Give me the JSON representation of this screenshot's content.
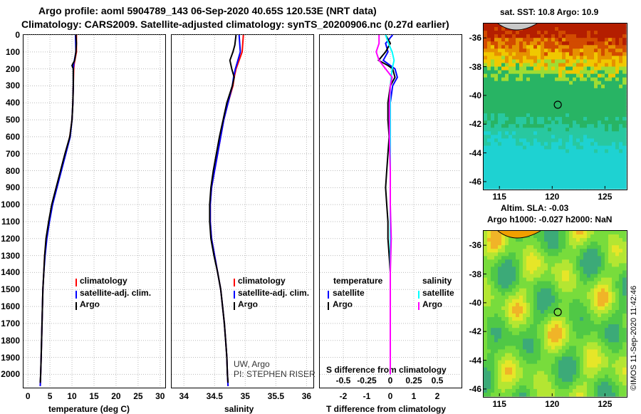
{
  "header": {
    "line1": "Argo profile: aoml 5904789_143 06-Sep-2020 40.65S 120.53E (NRT data)",
    "line2": "Climatology: CARS2009. Satellite-adjusted climatology: synTS_20200906.nc (0.27d earlier)"
  },
  "depth_ticks": [
    "0",
    "100",
    "200",
    "300",
    "400",
    "500",
    "600",
    "700",
    "800",
    "900",
    "1000",
    "1100",
    "1200",
    "1300",
    "1400",
    "1500",
    "1600",
    "1700",
    "1800",
    "1900",
    "2000"
  ],
  "chart_data": [
    {
      "type": "line",
      "name": "temperature",
      "xlabel": "temperature (deg C)",
      "ylabel": "depth",
      "xlim": [
        -1,
        31
      ],
      "ylim": [
        2070,
        0
      ],
      "xticks": [
        "0",
        "5",
        "10",
        "15",
        "20",
        "25",
        "30"
      ],
      "series": [
        {
          "name": "climatology",
          "color": "#ff0000",
          "depth": [
            0,
            100,
            170,
            200,
            300,
            400,
            500,
            600,
            700,
            800,
            900,
            1000,
            1100,
            1200,
            1300,
            1400,
            1500,
            1600,
            1700,
            1800,
            1900,
            2000,
            2070
          ],
          "values": [
            11.0,
            11.0,
            10.5,
            10.4,
            10.3,
            10.2,
            10.0,
            9.5,
            8.5,
            7.5,
            6.5,
            5.5,
            4.8,
            4.2,
            3.8,
            3.6,
            3.4,
            3.3,
            3.2,
            3.1,
            3.0,
            2.9,
            2.8
          ]
        },
        {
          "name": "satellite-adj. clim.",
          "color": "#0000ff",
          "depth": [
            0,
            100,
            170,
            200,
            300,
            400,
            500,
            600,
            700,
            800,
            900,
            1000,
            1100,
            1200,
            1300,
            1400,
            1500,
            1600,
            1700,
            1800,
            1900,
            2000,
            2070
          ],
          "values": [
            10.8,
            10.9,
            10.4,
            10.3,
            10.3,
            10.2,
            10.0,
            9.6,
            8.6,
            7.6,
            6.6,
            5.6,
            4.9,
            4.3,
            3.9,
            3.6,
            3.4,
            3.3,
            3.2,
            3.1,
            3.0,
            2.9,
            2.8
          ]
        },
        {
          "name": "Argo",
          "color": "#000000",
          "depth": [
            0,
            50,
            100,
            150,
            180,
            200,
            300,
            400,
            500,
            600,
            700,
            800,
            900,
            1000,
            1100,
            1200,
            1300,
            1400,
            1500,
            1600,
            1700,
            1800,
            1900,
            2000,
            2050
          ],
          "values": [
            10.9,
            11.0,
            10.9,
            10.6,
            10.0,
            10.3,
            10.3,
            10.2,
            10.0,
            9.5,
            8.4,
            7.4,
            6.4,
            5.4,
            4.7,
            4.1,
            3.8,
            3.6,
            3.4,
            3.3,
            3.2,
            3.1,
            3.0,
            2.9,
            2.8
          ]
        }
      ],
      "legend": [
        "climatology",
        "satellite-adj. clim.",
        "Argo"
      ]
    },
    {
      "type": "line",
      "name": "salinity",
      "xlabel": "salinity",
      "ylabel": "depth",
      "xlim": [
        33.8,
        36.1
      ],
      "ylim": [
        2070,
        0
      ],
      "xticks": [
        "34",
        "34.5",
        "35",
        "35.5",
        "36"
      ],
      "series": [
        {
          "name": "climatology",
          "color": "#ff0000",
          "depth": [
            0,
            100,
            150,
            200,
            250,
            300,
            400,
            500,
            600,
            700,
            800,
            900,
            1000,
            1100,
            1200,
            1300,
            1400,
            1500,
            1600,
            1700,
            1800,
            1900,
            2000,
            2070
          ],
          "values": [
            34.97,
            34.95,
            34.9,
            34.85,
            34.82,
            34.8,
            34.72,
            34.65,
            34.6,
            34.55,
            34.5,
            34.45,
            34.43,
            34.43,
            34.45,
            34.5,
            34.55,
            34.6,
            34.63,
            34.66,
            34.68,
            34.7,
            34.71,
            34.72
          ]
        },
        {
          "name": "satellite-adj. clim.",
          "color": "#0000ff",
          "depth": [
            0,
            100,
            150,
            200,
            250,
            300,
            400,
            500,
            600,
            700,
            800,
            900,
            1000,
            1100,
            1200,
            1300,
            1400,
            1500,
            1600,
            1700,
            1800,
            1900,
            2000,
            2070
          ],
          "values": [
            34.9,
            34.92,
            34.88,
            34.84,
            34.81,
            34.79,
            34.72,
            34.65,
            34.6,
            34.55,
            34.5,
            34.45,
            34.43,
            34.43,
            34.45,
            34.5,
            34.55,
            34.6,
            34.63,
            34.66,
            34.68,
            34.7,
            34.71,
            34.72
          ]
        },
        {
          "name": "Argo",
          "color": "#000000",
          "depth": [
            0,
            60,
            100,
            150,
            200,
            250,
            300,
            400,
            500,
            600,
            700,
            800,
            900,
            1000,
            1100,
            1200,
            1300,
            1400,
            1500,
            1600,
            1700,
            1800,
            1900,
            2000,
            2050
          ],
          "values": [
            34.85,
            34.83,
            34.8,
            34.75,
            34.78,
            34.82,
            34.79,
            34.7,
            34.64,
            34.58,
            34.53,
            34.48,
            34.44,
            34.42,
            34.42,
            34.44,
            34.49,
            34.55,
            34.6,
            34.63,
            34.66,
            34.68,
            34.7,
            34.71,
            34.72
          ]
        }
      ],
      "legend": [
        "climatology",
        "satellite-adj. clim.",
        "Argo"
      ],
      "note1": "UW, Argo",
      "note2": "PI: STEPHEN RISER"
    },
    {
      "type": "line",
      "name": "difference",
      "xlabel": "T difference from climatology",
      "xlabel_top": "S difference from climatology",
      "ylim": [
        2070,
        0
      ],
      "t_xlim": [
        -3,
        3
      ],
      "t_xticks": [
        "-2",
        "-1",
        "0",
        "1",
        "2"
      ],
      "s_xlim": [
        -0.75,
        0.75
      ],
      "s_xticks": [
        "-0.5",
        "-0.25",
        "0",
        "0.25",
        "0.5"
      ],
      "series": [
        {
          "name": "T satellite",
          "unit": "T",
          "color": "#0000ff",
          "depth": [
            0,
            50,
            100,
            150,
            200,
            250,
            300,
            400,
            600,
            800,
            1000,
            1200,
            1400,
            1600,
            1800,
            2000
          ],
          "values": [
            0.1,
            -0.2,
            -0.1,
            -0.3,
            0.2,
            0.3,
            0.1,
            0.0,
            0.0,
            0.0,
            0.0,
            0.0,
            0.0,
            0.0,
            0.0,
            0.0
          ]
        },
        {
          "name": "T Argo",
          "unit": "T",
          "color": "#000000",
          "depth": [
            0,
            50,
            100,
            150,
            180,
            200,
            250,
            300,
            400,
            500,
            600,
            700,
            800,
            900,
            1000,
            1100,
            1200,
            1300,
            1400,
            1600,
            1800,
            2000
          ],
          "values": [
            -0.2,
            0.0,
            -0.2,
            -0.5,
            -0.1,
            0.1,
            0.2,
            0.0,
            -0.1,
            -0.1,
            -0.05,
            -0.1,
            -0.15,
            -0.2,
            -0.15,
            -0.1,
            -0.1,
            -0.05,
            0.0,
            0.0,
            0.0,
            0.0
          ]
        },
        {
          "name": "S satellite",
          "unit": "S",
          "color": "#00ffff",
          "depth": [
            0,
            50,
            100,
            150,
            200,
            300,
            400,
            600,
            800,
            1000,
            1200,
            1400,
            1600,
            1800,
            2000
          ],
          "values": [
            -0.05,
            -0.02,
            0.02,
            0.04,
            0.02,
            0.0,
            0.0,
            0.0,
            0.0,
            0.0,
            0.0,
            0.0,
            0.0,
            0.0,
            0.0
          ]
        },
        {
          "name": "S Argo",
          "unit": "S",
          "color": "#ff00ff",
          "depth": [
            0,
            50,
            100,
            150,
            200,
            250,
            300,
            400,
            600,
            800,
            1000,
            1200,
            1400,
            1600,
            1800,
            2000
          ],
          "values": [
            -0.12,
            -0.12,
            -0.15,
            -0.12,
            -0.05,
            0.02,
            0.0,
            -0.01,
            -0.01,
            0.0,
            0.0,
            0.01,
            0.0,
            0.0,
            0.0,
            0.0
          ]
        }
      ],
      "legend_t_title": "temperature",
      "legend_s_title": "salinity",
      "legend_t": [
        "satellite",
        "Argo"
      ],
      "legend_s": [
        "satellite",
        "Argo"
      ]
    },
    {
      "type": "heatmap",
      "name": "sst_map",
      "title": "sat. SST: 10.8 Argo: 10.9",
      "xticks": [
        "115",
        "120",
        "125"
      ],
      "yticks": [
        "-36",
        "-38",
        "-40",
        "-42",
        "-44",
        "-46"
      ]
    },
    {
      "type": "heatmap",
      "name": "sla_map",
      "title1": "Altim. SLA: -0.03",
      "title2": "Argo h1000: -0.027 h2000: NaN",
      "xticks": [
        "115",
        "120",
        "125"
      ],
      "yticks": [
        "-36",
        "-38",
        "-40",
        "-42",
        "-44",
        "-46"
      ]
    }
  ],
  "footer": {
    "credit": "©IMOS 11-Sep-2020 11:42:46"
  }
}
